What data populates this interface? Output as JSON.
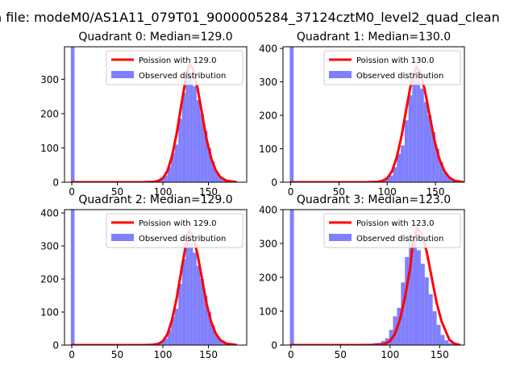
{
  "figure": {
    "suptitle": "n file: modeM0/AS1A11_079T01_9000005284_37124cztM0_level2_quad_clean"
  },
  "colors": {
    "poisson": "#ff0000",
    "histogram": "#8080ff",
    "axis": "#000000"
  },
  "chart_data": [
    {
      "type": "histogram",
      "title": "Quadrant 0: Median=129.0",
      "median": 129.0,
      "xlim": [
        -8,
        192
      ],
      "ylim": [
        0,
        395
      ],
      "xticks": [
        0,
        50,
        100,
        150
      ],
      "yticks": [
        0,
        100,
        200,
        300
      ],
      "legend": {
        "placement": "top-right",
        "entries": [
          "Poission with 129.0",
          "Observed distribution"
        ]
      },
      "series": [
        {
          "name": "Poission with 129.0",
          "kind": "line",
          "x": [
            0,
            60,
            80,
            90,
            95,
            100,
            105,
            110,
            115,
            120,
            125,
            129,
            133,
            138,
            143,
            148,
            153,
            158,
            163,
            170,
            180
          ],
          "y": [
            0,
            0,
            0,
            1,
            4,
            12,
            33,
            76,
            140,
            222,
            300,
            345,
            330,
            275,
            200,
            125,
            70,
            35,
            15,
            4,
            1
          ]
        },
        {
          "name": "Observed distribution",
          "kind": "bar",
          "bins": [
            [
              -1,
              3,
              395
            ],
            [
              81,
              85,
              4
            ],
            [
              85,
              89,
              4
            ],
            [
              89,
              93,
              6
            ],
            [
              93,
              97,
              7
            ],
            [
              97,
              101,
              12
            ],
            [
              101,
              105,
              20
            ],
            [
              105,
              109,
              45
            ],
            [
              109,
              113,
              85
            ],
            [
              113,
              117,
              110
            ],
            [
              117,
              121,
              185
            ],
            [
              121,
              125,
              260
            ],
            [
              125,
              129,
              330
            ],
            [
              129,
              133,
              310
            ],
            [
              133,
              137,
              280
            ],
            [
              137,
              141,
              240
            ],
            [
              141,
              145,
              200
            ],
            [
              145,
              149,
              150
            ],
            [
              149,
              153,
              100
            ],
            [
              153,
              157,
              60
            ],
            [
              157,
              161,
              30
            ],
            [
              161,
              165,
              14
            ],
            [
              165,
              169,
              6
            ],
            [
              169,
              173,
              3
            ]
          ]
        }
      ]
    },
    {
      "type": "histogram",
      "title": "Quadrant 1: Median=130.0",
      "median": 130.0,
      "xlim": [
        -8,
        180
      ],
      "ylim": [
        0,
        405
      ],
      "xticks": [
        0,
        50,
        100,
        150
      ],
      "yticks": [
        0,
        100,
        200,
        300,
        400
      ],
      "legend": {
        "placement": "top-right",
        "entries": [
          "Poission with 130.0",
          "Observed distribution"
        ]
      },
      "series": [
        {
          "name": "Poission with 130.0",
          "kind": "line",
          "x": [
            0,
            60,
            80,
            90,
            95,
            100,
            105,
            110,
            115,
            120,
            125,
            130,
            134,
            139,
            144,
            149,
            154,
            159,
            164,
            170,
            178
          ],
          "y": [
            0,
            0,
            0,
            1,
            4,
            12,
            33,
            76,
            140,
            222,
            300,
            345,
            330,
            275,
            200,
            125,
            70,
            35,
            15,
            4,
            1
          ]
        },
        {
          "name": "Observed distribution",
          "kind": "bar",
          "bins": [
            [
              -1,
              3,
              405
            ],
            [
              82,
              86,
              4
            ],
            [
              86,
              90,
              4
            ],
            [
              90,
              94,
              6
            ],
            [
              94,
              98,
              7
            ],
            [
              98,
              102,
              12
            ],
            [
              102,
              106,
              20
            ],
            [
              106,
              110,
              45
            ],
            [
              110,
              114,
              85
            ],
            [
              114,
              118,
              110
            ],
            [
              118,
              122,
              185
            ],
            [
              122,
              126,
              260
            ],
            [
              126,
              130,
              330
            ],
            [
              130,
              134,
              310
            ],
            [
              134,
              138,
              280
            ],
            [
              138,
              142,
              240
            ],
            [
              142,
              146,
              200
            ],
            [
              146,
              150,
              150
            ],
            [
              150,
              154,
              100
            ],
            [
              154,
              158,
              60
            ],
            [
              158,
              162,
              30
            ],
            [
              162,
              166,
              14
            ],
            [
              166,
              170,
              6
            ],
            [
              170,
              174,
              3
            ]
          ]
        }
      ]
    },
    {
      "type": "histogram",
      "title": "Quadrant 2: Median=129.0",
      "median": 129.0,
      "xlim": [
        -8,
        192
      ],
      "ylim": [
        0,
        410
      ],
      "xticks": [
        0,
        50,
        100,
        150
      ],
      "yticks": [
        0,
        100,
        200,
        300,
        400
      ],
      "legend": {
        "placement": "top-right",
        "entries": [
          "Poission with 129.0",
          "Observed distribution"
        ]
      },
      "series": [
        {
          "name": "Poission with 129.0",
          "kind": "line",
          "x": [
            0,
            60,
            80,
            90,
            95,
            100,
            105,
            110,
            115,
            120,
            125,
            129,
            133,
            138,
            143,
            148,
            153,
            158,
            163,
            170,
            180
          ],
          "y": [
            0,
            0,
            0,
            1,
            4,
            12,
            33,
            76,
            140,
            222,
            300,
            345,
            330,
            275,
            200,
            125,
            70,
            35,
            15,
            4,
            1
          ]
        },
        {
          "name": "Observed distribution",
          "kind": "bar",
          "bins": [
            [
              -1,
              3,
              410
            ],
            [
              81,
              85,
              4
            ],
            [
              85,
              89,
              4
            ],
            [
              89,
              93,
              6
            ],
            [
              93,
              97,
              7
            ],
            [
              97,
              101,
              12
            ],
            [
              101,
              105,
              20
            ],
            [
              105,
              109,
              45
            ],
            [
              109,
              113,
              85
            ],
            [
              113,
              117,
              110
            ],
            [
              117,
              121,
              185
            ],
            [
              121,
              125,
              260
            ],
            [
              125,
              129,
              330
            ],
            [
              129,
              133,
              310
            ],
            [
              133,
              137,
              280
            ],
            [
              137,
              141,
              240
            ],
            [
              141,
              145,
              200
            ],
            [
              145,
              149,
              150
            ],
            [
              149,
              153,
              100
            ],
            [
              153,
              157,
              60
            ],
            [
              157,
              161,
              30
            ],
            [
              161,
              165,
              14
            ],
            [
              165,
              169,
              6
            ],
            [
              169,
              173,
              3
            ]
          ]
        }
      ]
    },
    {
      "type": "histogram",
      "title": "Quadrant 3: Median=123.0",
      "median": 123.0,
      "xlim": [
        -8,
        175
      ],
      "ylim": [
        0,
        400
      ],
      "xticks": [
        0,
        50,
        100,
        150
      ],
      "yticks": [
        0,
        100,
        200,
        300,
        400
      ],
      "legend": {
        "placement": "top-right",
        "entries": [
          "Poission with 123.0",
          "Observed distribution"
        ]
      },
      "series": [
        {
          "name": "Poission with 123.0",
          "kind": "line",
          "x": [
            0,
            60,
            80,
            90,
            95,
            100,
            105,
            110,
            115,
            120,
            123,
            127,
            132,
            137,
            142,
            147,
            152,
            157,
            160,
            165,
            170
          ],
          "y": [
            0,
            0,
            0,
            1,
            4,
            12,
            33,
            76,
            140,
            222,
            300,
            345,
            330,
            275,
            200,
            125,
            70,
            35,
            15,
            4,
            1
          ]
        },
        {
          "name": "Observed distribution",
          "kind": "bar",
          "bins": [
            [
              -1,
              3,
              400
            ],
            [
              75,
              79,
              4
            ],
            [
              79,
              83,
              4
            ],
            [
              83,
              87,
              6
            ],
            [
              87,
              91,
              7
            ],
            [
              91,
              95,
              12
            ],
            [
              95,
              99,
              20
            ],
            [
              99,
              103,
              45
            ],
            [
              103,
              107,
              85
            ],
            [
              107,
              111,
              110
            ],
            [
              111,
              115,
              185
            ],
            [
              115,
              119,
              260
            ],
            [
              119,
              123,
              330
            ],
            [
              123,
              127,
              310
            ],
            [
              127,
              131,
              280
            ],
            [
              131,
              135,
              240
            ],
            [
              135,
              139,
              200
            ],
            [
              139,
              143,
              150
            ],
            [
              143,
              147,
              100
            ],
            [
              147,
              151,
              60
            ],
            [
              151,
              155,
              30
            ],
            [
              155,
              159,
              14
            ],
            [
              159,
              163,
              6
            ],
            [
              163,
              167,
              3
            ]
          ]
        }
      ]
    }
  ]
}
